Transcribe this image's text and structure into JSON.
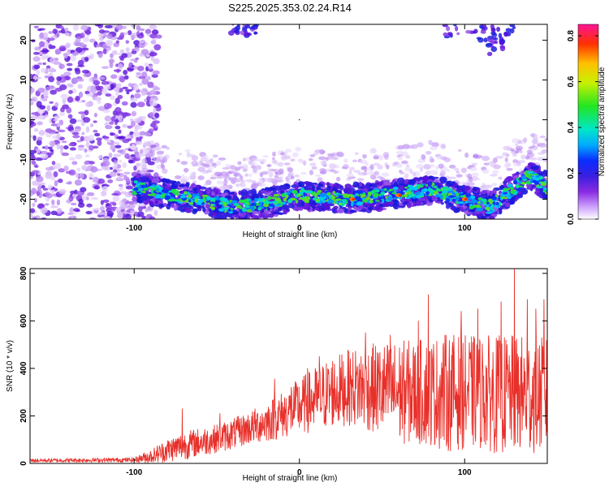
{
  "title": "S225.2025.353.02.24.R14",
  "chart_data": [
    {
      "type": "heatmap",
      "name": "spectrogram",
      "xlabel": "Height of straight line (km)",
      "ylabel": "Frequency (Hz)",
      "xlim": [
        -163,
        150
      ],
      "ylim": [
        -25,
        24
      ],
      "xticks": [
        -100,
        0,
        100
      ],
      "yticks": [
        20,
        10,
        0,
        -10,
        -20
      ],
      "xtick_labels": [
        "-100",
        "0",
        "100"
      ],
      "ytick_labels": [
        "20",
        "10",
        "0",
        "-10",
        "-20"
      ],
      "colorbar": {
        "label": "Normalized spectral amplitude",
        "range": [
          0,
          0.85
        ],
        "ticks": [
          0.0,
          0.2,
          0.4,
          0.6,
          0.8
        ],
        "tick_labels": [
          "0.0",
          "0.2",
          "0.4",
          "0.6",
          "0.8"
        ]
      },
      "signal_band": {
        "x_start": -100,
        "x_end": 150,
        "center_freq": [
          [
            -100,
            -17
          ],
          [
            -70,
            -19.5
          ],
          [
            -40,
            -22
          ],
          [
            -20,
            -21
          ],
          [
            0,
            -19
          ],
          [
            30,
            -20
          ],
          [
            60,
            -18.5
          ],
          [
            80,
            -17.5
          ],
          [
            100,
            -20
          ],
          [
            115,
            -22
          ],
          [
            140,
            -14
          ],
          [
            150,
            -17
          ]
        ]
      },
      "noise_region_x": [
        -163,
        -100
      ],
      "peak_markers": [
        [
          32,
          -20
        ],
        [
          100,
          -20
        ],
        [
          60,
          -19
        ]
      ]
    },
    {
      "type": "line",
      "name": "snr",
      "xlabel": "Height of straight line (km)",
      "ylabel": "SNR (10 * v/v)",
      "xlim": [
        -163,
        150
      ],
      "ylim": [
        0,
        820
      ],
      "xticks": [
        -100,
        0,
        100
      ],
      "yticks": [
        0,
        200,
        400,
        600,
        800
      ],
      "xtick_labels": [
        "-100",
        "0",
        "100"
      ],
      "ytick_labels": [
        "0",
        "200",
        "400",
        "600",
        "800"
      ],
      "series": [
        {
          "name": "SNR",
          "color": "#e8302a",
          "envelope": {
            "x": [
              -163,
              -100,
              -90,
              -80,
              -70,
              -60,
              -50,
              -40,
              -30,
              -20,
              -10,
              0,
              10,
              20,
              30,
              40,
              50,
              60,
              70,
              80,
              90,
              100,
              110,
              120,
              130,
              140,
              150
            ],
            "mean": [
              12,
              15,
              30,
              55,
              75,
              90,
              105,
              125,
              150,
              175,
              205,
              240,
              270,
              300,
              320,
              320,
              310,
              300,
              300,
              300,
              300,
              300,
              300,
              290,
              290,
              290,
              290
            ],
            "spread": [
              8,
              10,
              30,
              50,
              60,
              60,
              60,
              65,
              70,
              85,
              100,
              120,
              140,
              150,
              160,
              180,
              200,
              220,
              220,
              230,
              250,
              240,
              240,
              250,
              250,
              250,
              240
            ]
          },
          "peaks": [
            [
              -71,
              230
            ],
            [
              -48,
              210
            ],
            [
              -15,
              355
            ],
            [
              -5,
              320
            ],
            [
              5,
              400
            ],
            [
              12,
              450
            ],
            [
              20,
              430
            ],
            [
              40,
              550
            ],
            [
              55,
              540
            ],
            [
              72,
              600
            ],
            [
              78,
              710
            ],
            [
              98,
              640
            ],
            [
              108,
              650
            ],
            [
              122,
              680
            ],
            [
              130,
              830
            ],
            [
              138,
              690
            ],
            [
              143,
              650
            ],
            [
              148,
              690
            ]
          ]
        }
      ]
    }
  ]
}
